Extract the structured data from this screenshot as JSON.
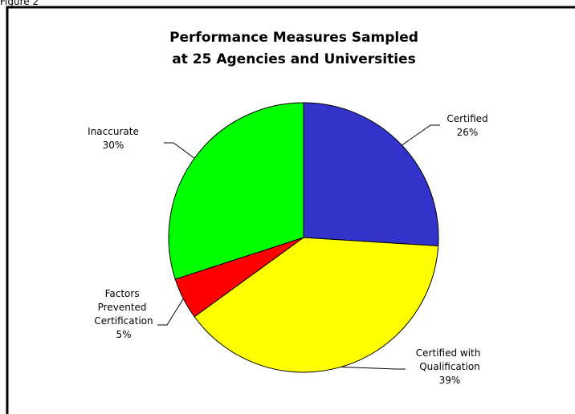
{
  "figure_label": "Figure 2",
  "chart_data": {
    "type": "pie",
    "title": [
      "Performance Measures Sampled",
      "at 25 Agencies and Universities"
    ],
    "categories": [
      "Certified",
      "Certified with Qualification",
      "Factors Prevented Certification",
      "Inaccurate"
    ],
    "values": [
      26,
      39,
      5,
      30
    ],
    "value_labels": [
      "26%",
      "39%",
      "5%",
      "30%"
    ],
    "colors": [
      "#3333cc",
      "#ffff00",
      "#ff0000",
      "#00ff00"
    ]
  }
}
